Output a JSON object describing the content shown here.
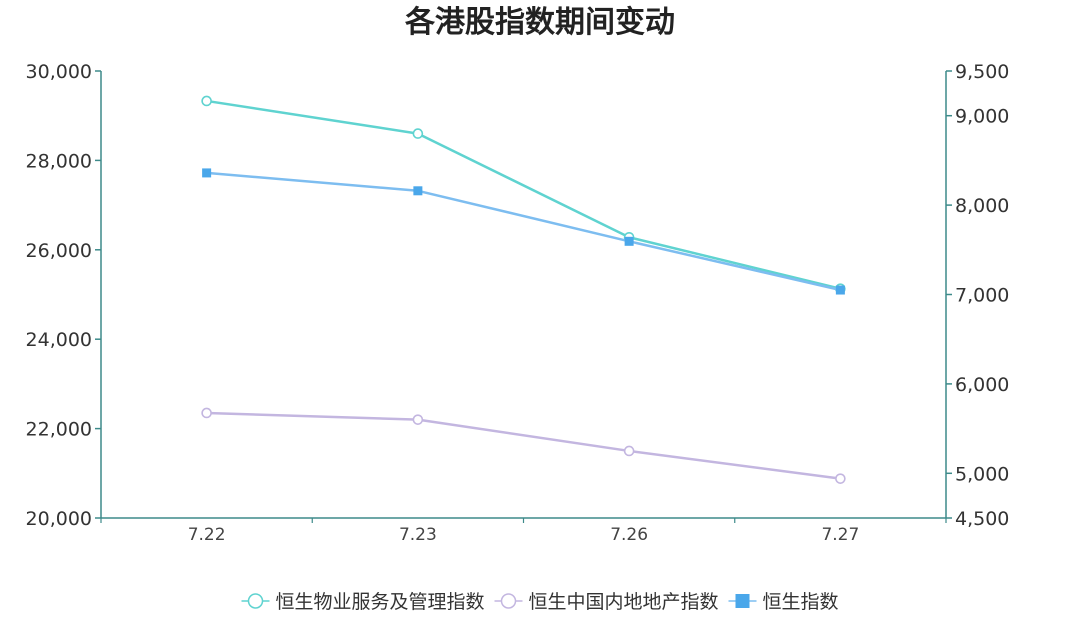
{
  "chart_data": {
    "type": "line",
    "title": "各港股指数期间变动",
    "categories": [
      "7.22",
      "7.23",
      "7.26",
      "7.27"
    ],
    "y_left": {
      "range": [
        20000,
        30000
      ],
      "ticks": [
        20000,
        22000,
        24000,
        26000,
        28000,
        30000
      ],
      "tick_labels": [
        "20,000",
        "22,000",
        "24,000",
        "26,000",
        "28,000",
        "30,000"
      ]
    },
    "y_right": {
      "range": [
        4500,
        9500
      ],
      "ticks": [
        4500,
        5000,
        6000,
        7000,
        8000,
        9000,
        9500
      ],
      "tick_labels": [
        "4,500",
        "5,000",
        "6,000",
        "7,000",
        "8,000",
        "9,000",
        "9,500"
      ]
    },
    "series": [
      {
        "name": "恒生物业服务及管理指数",
        "axis": "right",
        "values": [
          9165,
          8800,
          7640,
          7065
        ],
        "color": "#5fd3d0",
        "marker": "circle"
      },
      {
        "name": "恒生中国内地地产指数",
        "axis": "right",
        "values": [
          5675,
          5600,
          5250,
          4940
        ],
        "color": "#c3b6e0",
        "marker": "circle"
      },
      {
        "name": "恒生指数",
        "axis": "left",
        "values": [
          27720,
          27320,
          26190,
          25100
        ],
        "color": "#7dbdf0",
        "marker": "square"
      }
    ],
    "legend_position": "bottom",
    "grid": false
  }
}
